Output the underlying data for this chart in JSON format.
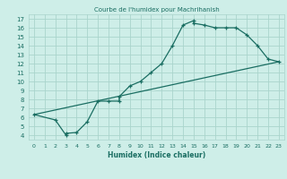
{
  "title": "Courbe de l'humidex pour Machrihanish",
  "xlabel": "Humidex (Indice chaleur)",
  "bg_color": "#ceeee8",
  "line_color": "#1a6e62",
  "grid_color": "#aad4cc",
  "curve1_x": [
    0,
    2,
    3,
    3,
    4,
    5,
    6,
    7,
    8,
    8,
    9,
    10,
    11,
    12,
    13,
    14,
    15,
    15,
    16,
    17,
    18,
    19,
    20,
    21,
    22,
    23
  ],
  "curve1_y": [
    6.3,
    5.7,
    4.0,
    4.2,
    4.3,
    5.5,
    7.8,
    7.8,
    7.8,
    8.3,
    9.5,
    10.0,
    11.0,
    12.0,
    14.0,
    16.3,
    16.8,
    16.5,
    16.3,
    16.0,
    16.0,
    16.0,
    15.2,
    14.0,
    12.5,
    12.2
  ],
  "trend_x": [
    0,
    23
  ],
  "trend_y": [
    6.3,
    12.2
  ],
  "xlim": [
    -0.5,
    23.5
  ],
  "ylim": [
    3.5,
    17.5
  ],
  "xticks": [
    0,
    1,
    2,
    3,
    4,
    5,
    6,
    7,
    8,
    9,
    10,
    11,
    12,
    13,
    14,
    15,
    16,
    17,
    18,
    19,
    20,
    21,
    22,
    23
  ],
  "yticks": [
    4,
    5,
    6,
    7,
    8,
    9,
    10,
    11,
    12,
    13,
    14,
    15,
    16,
    17
  ]
}
